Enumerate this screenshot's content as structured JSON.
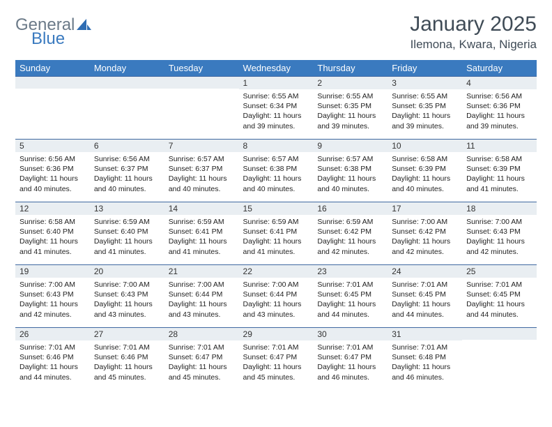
{
  "brand": {
    "part1": "General",
    "part2": "Blue"
  },
  "title": "January 2025",
  "location": "Ilemona, Kwara, Nigeria",
  "colors": {
    "header_bg": "#3a7abf",
    "header_text": "#ffffff",
    "daynum_bg": "#e9eef2",
    "row_border": "#3f68a0",
    "title_color": "#3f4b56",
    "logo_gray": "#6b7a88",
    "logo_blue": "#3a7abf"
  },
  "day_headers": [
    "Sunday",
    "Monday",
    "Tuesday",
    "Wednesday",
    "Thursday",
    "Friday",
    "Saturday"
  ],
  "weeks": [
    [
      {
        "n": "",
        "lines": []
      },
      {
        "n": "",
        "lines": []
      },
      {
        "n": "",
        "lines": []
      },
      {
        "n": "1",
        "lines": [
          "Sunrise: 6:55 AM",
          "Sunset: 6:34 PM",
          "Daylight: 11 hours",
          "and 39 minutes."
        ]
      },
      {
        "n": "2",
        "lines": [
          "Sunrise: 6:55 AM",
          "Sunset: 6:35 PM",
          "Daylight: 11 hours",
          "and 39 minutes."
        ]
      },
      {
        "n": "3",
        "lines": [
          "Sunrise: 6:55 AM",
          "Sunset: 6:35 PM",
          "Daylight: 11 hours",
          "and 39 minutes."
        ]
      },
      {
        "n": "4",
        "lines": [
          "Sunrise: 6:56 AM",
          "Sunset: 6:36 PM",
          "Daylight: 11 hours",
          "and 39 minutes."
        ]
      }
    ],
    [
      {
        "n": "5",
        "lines": [
          "Sunrise: 6:56 AM",
          "Sunset: 6:36 PM",
          "Daylight: 11 hours",
          "and 40 minutes."
        ]
      },
      {
        "n": "6",
        "lines": [
          "Sunrise: 6:56 AM",
          "Sunset: 6:37 PM",
          "Daylight: 11 hours",
          "and 40 minutes."
        ]
      },
      {
        "n": "7",
        "lines": [
          "Sunrise: 6:57 AM",
          "Sunset: 6:37 PM",
          "Daylight: 11 hours",
          "and 40 minutes."
        ]
      },
      {
        "n": "8",
        "lines": [
          "Sunrise: 6:57 AM",
          "Sunset: 6:38 PM",
          "Daylight: 11 hours",
          "and 40 minutes."
        ]
      },
      {
        "n": "9",
        "lines": [
          "Sunrise: 6:57 AM",
          "Sunset: 6:38 PM",
          "Daylight: 11 hours",
          "and 40 minutes."
        ]
      },
      {
        "n": "10",
        "lines": [
          "Sunrise: 6:58 AM",
          "Sunset: 6:39 PM",
          "Daylight: 11 hours",
          "and 40 minutes."
        ]
      },
      {
        "n": "11",
        "lines": [
          "Sunrise: 6:58 AM",
          "Sunset: 6:39 PM",
          "Daylight: 11 hours",
          "and 41 minutes."
        ]
      }
    ],
    [
      {
        "n": "12",
        "lines": [
          "Sunrise: 6:58 AM",
          "Sunset: 6:40 PM",
          "Daylight: 11 hours",
          "and 41 minutes."
        ]
      },
      {
        "n": "13",
        "lines": [
          "Sunrise: 6:59 AM",
          "Sunset: 6:40 PM",
          "Daylight: 11 hours",
          "and 41 minutes."
        ]
      },
      {
        "n": "14",
        "lines": [
          "Sunrise: 6:59 AM",
          "Sunset: 6:41 PM",
          "Daylight: 11 hours",
          "and 41 minutes."
        ]
      },
      {
        "n": "15",
        "lines": [
          "Sunrise: 6:59 AM",
          "Sunset: 6:41 PM",
          "Daylight: 11 hours",
          "and 41 minutes."
        ]
      },
      {
        "n": "16",
        "lines": [
          "Sunrise: 6:59 AM",
          "Sunset: 6:42 PM",
          "Daylight: 11 hours",
          "and 42 minutes."
        ]
      },
      {
        "n": "17",
        "lines": [
          "Sunrise: 7:00 AM",
          "Sunset: 6:42 PM",
          "Daylight: 11 hours",
          "and 42 minutes."
        ]
      },
      {
        "n": "18",
        "lines": [
          "Sunrise: 7:00 AM",
          "Sunset: 6:43 PM",
          "Daylight: 11 hours",
          "and 42 minutes."
        ]
      }
    ],
    [
      {
        "n": "19",
        "lines": [
          "Sunrise: 7:00 AM",
          "Sunset: 6:43 PM",
          "Daylight: 11 hours",
          "and 42 minutes."
        ]
      },
      {
        "n": "20",
        "lines": [
          "Sunrise: 7:00 AM",
          "Sunset: 6:43 PM",
          "Daylight: 11 hours",
          "and 43 minutes."
        ]
      },
      {
        "n": "21",
        "lines": [
          "Sunrise: 7:00 AM",
          "Sunset: 6:44 PM",
          "Daylight: 11 hours",
          "and 43 minutes."
        ]
      },
      {
        "n": "22",
        "lines": [
          "Sunrise: 7:00 AM",
          "Sunset: 6:44 PM",
          "Daylight: 11 hours",
          "and 43 minutes."
        ]
      },
      {
        "n": "23",
        "lines": [
          "Sunrise: 7:01 AM",
          "Sunset: 6:45 PM",
          "Daylight: 11 hours",
          "and 44 minutes."
        ]
      },
      {
        "n": "24",
        "lines": [
          "Sunrise: 7:01 AM",
          "Sunset: 6:45 PM",
          "Daylight: 11 hours",
          "and 44 minutes."
        ]
      },
      {
        "n": "25",
        "lines": [
          "Sunrise: 7:01 AM",
          "Sunset: 6:45 PM",
          "Daylight: 11 hours",
          "and 44 minutes."
        ]
      }
    ],
    [
      {
        "n": "26",
        "lines": [
          "Sunrise: 7:01 AM",
          "Sunset: 6:46 PM",
          "Daylight: 11 hours",
          "and 44 minutes."
        ]
      },
      {
        "n": "27",
        "lines": [
          "Sunrise: 7:01 AM",
          "Sunset: 6:46 PM",
          "Daylight: 11 hours",
          "and 45 minutes."
        ]
      },
      {
        "n": "28",
        "lines": [
          "Sunrise: 7:01 AM",
          "Sunset: 6:47 PM",
          "Daylight: 11 hours",
          "and 45 minutes."
        ]
      },
      {
        "n": "29",
        "lines": [
          "Sunrise: 7:01 AM",
          "Sunset: 6:47 PM",
          "Daylight: 11 hours",
          "and 45 minutes."
        ]
      },
      {
        "n": "30",
        "lines": [
          "Sunrise: 7:01 AM",
          "Sunset: 6:47 PM",
          "Daylight: 11 hours",
          "and 46 minutes."
        ]
      },
      {
        "n": "31",
        "lines": [
          "Sunrise: 7:01 AM",
          "Sunset: 6:48 PM",
          "Daylight: 11 hours",
          "and 46 minutes."
        ]
      },
      {
        "n": "",
        "lines": []
      }
    ]
  ]
}
